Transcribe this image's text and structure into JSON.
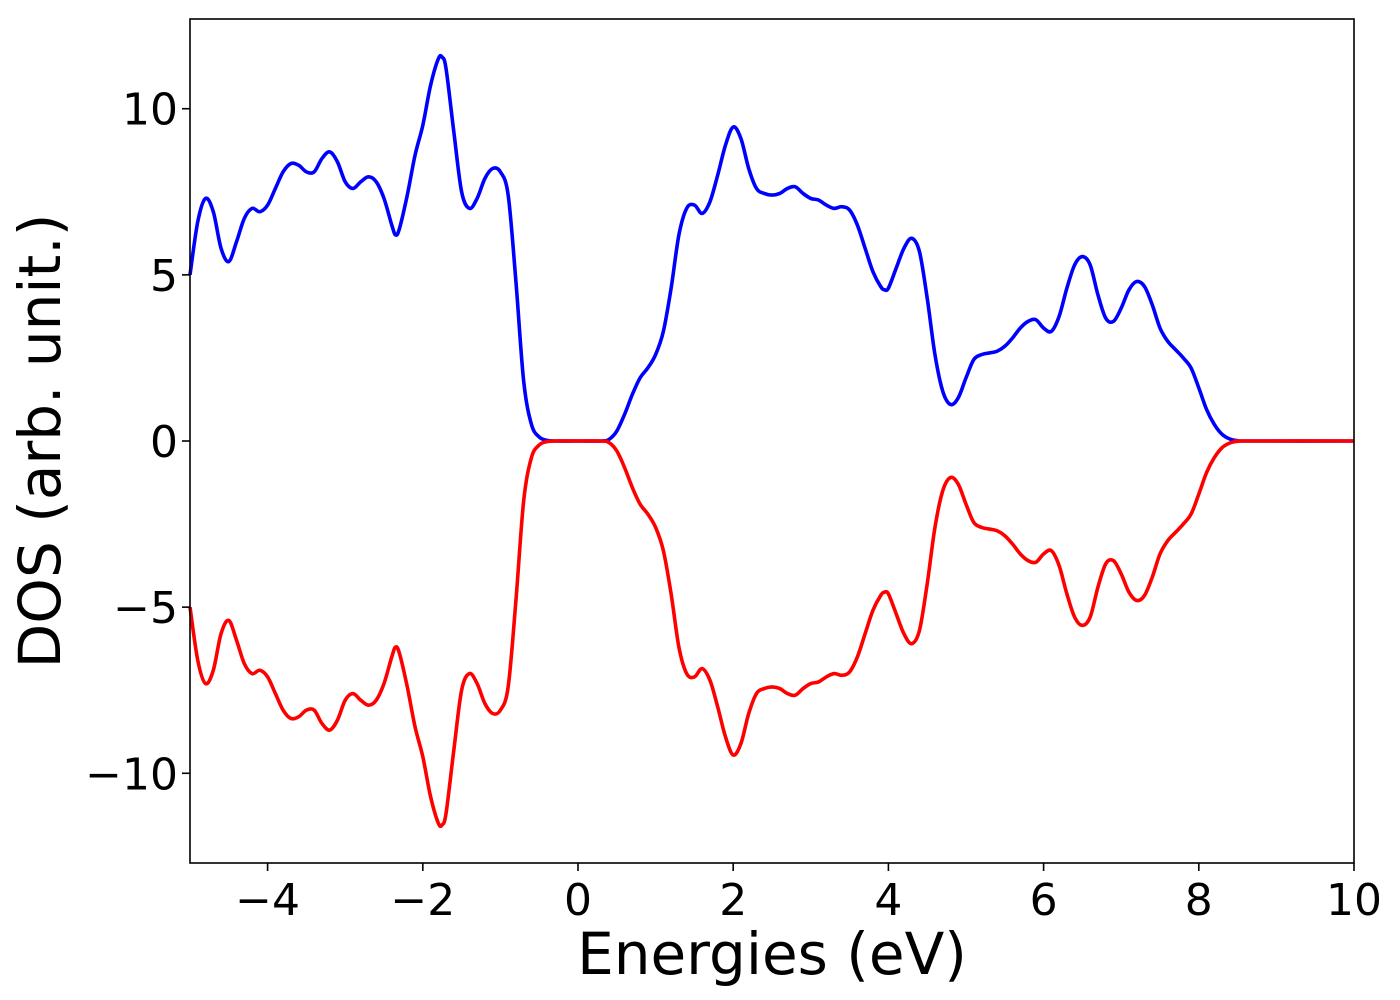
{
  "chart_data": {
    "type": "line",
    "xlabel": "Energies (eV)",
    "ylabel": "DOS (arb. unit.)",
    "xlim": [
      -5,
      10
    ],
    "ylim": [
      -12.7,
      12.7
    ],
    "grid": false,
    "x_ticks": [
      {
        "value": -4,
        "label": "−4"
      },
      {
        "value": -2,
        "label": "−2"
      },
      {
        "value": 0,
        "label": "0"
      },
      {
        "value": 2,
        "label": "2"
      },
      {
        "value": 4,
        "label": "4"
      },
      {
        "value": 6,
        "label": "6"
      },
      {
        "value": 8,
        "label": "8"
      },
      {
        "value": 10,
        "label": "10"
      }
    ],
    "y_ticks": [
      {
        "value": 10,
        "label": "10"
      },
      {
        "value": 5,
        "label": "5"
      },
      {
        "value": 0,
        "label": "0"
      },
      {
        "value": -5,
        "label": "−5"
      },
      {
        "value": -10,
        "label": "−10"
      }
    ],
    "series": [
      {
        "color": "#0000ff",
        "points": [
          [
            -5.0,
            5.0
          ],
          [
            -4.9,
            6.6
          ],
          [
            -4.8,
            7.3
          ],
          [
            -4.7,
            6.9
          ],
          [
            -4.6,
            5.8
          ],
          [
            -4.5,
            5.4
          ],
          [
            -4.4,
            6.0
          ],
          [
            -4.3,
            6.7
          ],
          [
            -4.2,
            7.0
          ],
          [
            -4.1,
            6.9
          ],
          [
            -4.0,
            7.1
          ],
          [
            -3.9,
            7.6
          ],
          [
            -3.8,
            8.1
          ],
          [
            -3.7,
            8.35
          ],
          [
            -3.6,
            8.3
          ],
          [
            -3.5,
            8.1
          ],
          [
            -3.4,
            8.1
          ],
          [
            -3.3,
            8.5
          ],
          [
            -3.2,
            8.7
          ],
          [
            -3.1,
            8.4
          ],
          [
            -3.0,
            7.8
          ],
          [
            -2.9,
            7.6
          ],
          [
            -2.8,
            7.8
          ],
          [
            -2.7,
            7.95
          ],
          [
            -2.6,
            7.8
          ],
          [
            -2.5,
            7.3
          ],
          [
            -2.4,
            6.5
          ],
          [
            -2.35,
            6.2
          ],
          [
            -2.3,
            6.4
          ],
          [
            -2.2,
            7.4
          ],
          [
            -2.1,
            8.6
          ],
          [
            -2.0,
            9.5
          ],
          [
            -1.9,
            10.7
          ],
          [
            -1.8,
            11.5
          ],
          [
            -1.75,
            11.55
          ],
          [
            -1.7,
            11.2
          ],
          [
            -1.6,
            9.3
          ],
          [
            -1.5,
            7.5
          ],
          [
            -1.4,
            7.0
          ],
          [
            -1.3,
            7.3
          ],
          [
            -1.2,
            7.9
          ],
          [
            -1.1,
            8.2
          ],
          [
            -1.0,
            8.1
          ],
          [
            -0.9,
            7.4
          ],
          [
            -0.8,
            4.8
          ],
          [
            -0.7,
            1.8
          ],
          [
            -0.6,
            0.5
          ],
          [
            -0.5,
            0.12
          ],
          [
            -0.4,
            0.02
          ],
          [
            -0.3,
            0.0
          ],
          [
            0.0,
            0.0
          ],
          [
            0.3,
            0.0
          ],
          [
            0.4,
            0.05
          ],
          [
            0.5,
            0.3
          ],
          [
            0.6,
            0.8
          ],
          [
            0.7,
            1.4
          ],
          [
            0.8,
            1.9
          ],
          [
            0.9,
            2.2
          ],
          [
            1.0,
            2.6
          ],
          [
            1.1,
            3.3
          ],
          [
            1.2,
            4.6
          ],
          [
            1.3,
            6.2
          ],
          [
            1.4,
            7.0
          ],
          [
            1.5,
            7.1
          ],
          [
            1.6,
            6.85
          ],
          [
            1.7,
            7.2
          ],
          [
            1.8,
            8.0
          ],
          [
            1.9,
            8.9
          ],
          [
            2.0,
            9.45
          ],
          [
            2.1,
            9.1
          ],
          [
            2.2,
            8.2
          ],
          [
            2.3,
            7.6
          ],
          [
            2.4,
            7.45
          ],
          [
            2.5,
            7.4
          ],
          [
            2.6,
            7.45
          ],
          [
            2.7,
            7.6
          ],
          [
            2.8,
            7.65
          ],
          [
            2.9,
            7.45
          ],
          [
            3.0,
            7.3
          ],
          [
            3.1,
            7.25
          ],
          [
            3.2,
            7.1
          ],
          [
            3.3,
            7.0
          ],
          [
            3.4,
            7.05
          ],
          [
            3.5,
            6.95
          ],
          [
            3.6,
            6.5
          ],
          [
            3.7,
            5.8
          ],
          [
            3.8,
            5.1
          ],
          [
            3.9,
            4.65
          ],
          [
            3.95,
            4.55
          ],
          [
            4.0,
            4.6
          ],
          [
            4.1,
            5.2
          ],
          [
            4.2,
            5.8
          ],
          [
            4.3,
            6.1
          ],
          [
            4.4,
            5.7
          ],
          [
            4.5,
            4.3
          ],
          [
            4.6,
            2.6
          ],
          [
            4.7,
            1.5
          ],
          [
            4.8,
            1.1
          ],
          [
            4.9,
            1.3
          ],
          [
            5.0,
            1.9
          ],
          [
            5.1,
            2.45
          ],
          [
            5.2,
            2.6
          ],
          [
            5.3,
            2.65
          ],
          [
            5.4,
            2.7
          ],
          [
            5.5,
            2.85
          ],
          [
            5.6,
            3.1
          ],
          [
            5.7,
            3.4
          ],
          [
            5.8,
            3.6
          ],
          [
            5.9,
            3.65
          ],
          [
            6.0,
            3.4
          ],
          [
            6.1,
            3.3
          ],
          [
            6.2,
            3.75
          ],
          [
            6.3,
            4.6
          ],
          [
            6.4,
            5.3
          ],
          [
            6.5,
            5.55
          ],
          [
            6.6,
            5.3
          ],
          [
            6.7,
            4.4
          ],
          [
            6.8,
            3.7
          ],
          [
            6.9,
            3.6
          ],
          [
            7.0,
            4.0
          ],
          [
            7.1,
            4.55
          ],
          [
            7.2,
            4.8
          ],
          [
            7.3,
            4.65
          ],
          [
            7.4,
            4.1
          ],
          [
            7.5,
            3.4
          ],
          [
            7.6,
            3.0
          ],
          [
            7.7,
            2.75
          ],
          [
            7.8,
            2.5
          ],
          [
            7.9,
            2.2
          ],
          [
            8.0,
            1.6
          ],
          [
            8.1,
            0.95
          ],
          [
            8.2,
            0.5
          ],
          [
            8.3,
            0.2
          ],
          [
            8.4,
            0.06
          ],
          [
            8.5,
            0.01
          ],
          [
            8.6,
            0.0
          ],
          [
            10.0,
            0.0
          ]
        ]
      },
      {
        "color": "#ff0000",
        "points": [
          [
            -5.0,
            -5.0
          ],
          [
            -4.9,
            -6.6
          ],
          [
            -4.8,
            -7.3
          ],
          [
            -4.7,
            -6.9
          ],
          [
            -4.6,
            -5.8
          ],
          [
            -4.5,
            -5.4
          ],
          [
            -4.4,
            -6.0
          ],
          [
            -4.3,
            -6.7
          ],
          [
            -4.2,
            -7.0
          ],
          [
            -4.1,
            -6.9
          ],
          [
            -4.0,
            -7.1
          ],
          [
            -3.9,
            -7.6
          ],
          [
            -3.8,
            -8.1
          ],
          [
            -3.7,
            -8.35
          ],
          [
            -3.6,
            -8.3
          ],
          [
            -3.5,
            -8.1
          ],
          [
            -3.4,
            -8.1
          ],
          [
            -3.3,
            -8.5
          ],
          [
            -3.2,
            -8.7
          ],
          [
            -3.1,
            -8.4
          ],
          [
            -3.0,
            -7.8
          ],
          [
            -2.9,
            -7.6
          ],
          [
            -2.8,
            -7.8
          ],
          [
            -2.7,
            -7.95
          ],
          [
            -2.6,
            -7.8
          ],
          [
            -2.5,
            -7.3
          ],
          [
            -2.4,
            -6.5
          ],
          [
            -2.35,
            -6.2
          ],
          [
            -2.3,
            -6.4
          ],
          [
            -2.2,
            -7.4
          ],
          [
            -2.1,
            -8.6
          ],
          [
            -2.0,
            -9.5
          ],
          [
            -1.9,
            -10.7
          ],
          [
            -1.8,
            -11.5
          ],
          [
            -1.75,
            -11.55
          ],
          [
            -1.7,
            -11.2
          ],
          [
            -1.6,
            -9.3
          ],
          [
            -1.5,
            -7.5
          ],
          [
            -1.4,
            -7.0
          ],
          [
            -1.3,
            -7.3
          ],
          [
            -1.2,
            -7.9
          ],
          [
            -1.1,
            -8.2
          ],
          [
            -1.0,
            -8.1
          ],
          [
            -0.9,
            -7.4
          ],
          [
            -0.8,
            -4.8
          ],
          [
            -0.7,
            -1.8
          ],
          [
            -0.6,
            -0.5
          ],
          [
            -0.5,
            -0.12
          ],
          [
            -0.4,
            -0.02
          ],
          [
            -0.3,
            0.0
          ],
          [
            0.0,
            0.0
          ],
          [
            0.3,
            0.0
          ],
          [
            0.4,
            -0.05
          ],
          [
            0.5,
            -0.3
          ],
          [
            0.6,
            -0.8
          ],
          [
            0.7,
            -1.4
          ],
          [
            0.8,
            -1.9
          ],
          [
            0.9,
            -2.2
          ],
          [
            1.0,
            -2.6
          ],
          [
            1.1,
            -3.3
          ],
          [
            1.2,
            -4.6
          ],
          [
            1.3,
            -6.2
          ],
          [
            1.4,
            -7.0
          ],
          [
            1.5,
            -7.1
          ],
          [
            1.6,
            -6.85
          ],
          [
            1.7,
            -7.2
          ],
          [
            1.8,
            -8.0
          ],
          [
            1.9,
            -8.9
          ],
          [
            2.0,
            -9.45
          ],
          [
            2.1,
            -9.1
          ],
          [
            2.2,
            -8.2
          ],
          [
            2.3,
            -7.6
          ],
          [
            2.4,
            -7.45
          ],
          [
            2.5,
            -7.4
          ],
          [
            2.6,
            -7.45
          ],
          [
            2.7,
            -7.6
          ],
          [
            2.8,
            -7.65
          ],
          [
            2.9,
            -7.45
          ],
          [
            3.0,
            -7.3
          ],
          [
            3.1,
            -7.25
          ],
          [
            3.2,
            -7.1
          ],
          [
            3.3,
            -7.0
          ],
          [
            3.4,
            -7.05
          ],
          [
            3.5,
            -6.95
          ],
          [
            3.6,
            -6.5
          ],
          [
            3.7,
            -5.8
          ],
          [
            3.8,
            -5.1
          ],
          [
            3.9,
            -4.65
          ],
          [
            3.95,
            -4.55
          ],
          [
            4.0,
            -4.6
          ],
          [
            4.1,
            -5.2
          ],
          [
            4.2,
            -5.8
          ],
          [
            4.3,
            -6.1
          ],
          [
            4.4,
            -5.7
          ],
          [
            4.5,
            -4.3
          ],
          [
            4.6,
            -2.6
          ],
          [
            4.7,
            -1.5
          ],
          [
            4.8,
            -1.1
          ],
          [
            4.9,
            -1.3
          ],
          [
            5.0,
            -1.9
          ],
          [
            5.1,
            -2.45
          ],
          [
            5.2,
            -2.6
          ],
          [
            5.3,
            -2.65
          ],
          [
            5.4,
            -2.7
          ],
          [
            5.5,
            -2.85
          ],
          [
            5.6,
            -3.1
          ],
          [
            5.7,
            -3.4
          ],
          [
            5.8,
            -3.6
          ],
          [
            5.9,
            -3.65
          ],
          [
            6.0,
            -3.4
          ],
          [
            6.1,
            -3.3
          ],
          [
            6.2,
            -3.75
          ],
          [
            6.3,
            -4.6
          ],
          [
            6.4,
            -5.3
          ],
          [
            6.5,
            -5.55
          ],
          [
            6.6,
            -5.3
          ],
          [
            6.7,
            -4.4
          ],
          [
            6.8,
            -3.7
          ],
          [
            6.9,
            -3.6
          ],
          [
            7.0,
            -4.0
          ],
          [
            7.1,
            -4.55
          ],
          [
            7.2,
            -4.8
          ],
          [
            7.3,
            -4.65
          ],
          [
            7.4,
            -4.1
          ],
          [
            7.5,
            -3.4
          ],
          [
            7.6,
            -3.0
          ],
          [
            7.7,
            -2.75
          ],
          [
            7.8,
            -2.5
          ],
          [
            7.9,
            -2.2
          ],
          [
            8.0,
            -1.6
          ],
          [
            8.1,
            -0.95
          ],
          [
            8.2,
            -0.5
          ],
          [
            8.3,
            -0.2
          ],
          [
            8.4,
            -0.06
          ],
          [
            8.5,
            -0.01
          ],
          [
            8.6,
            0.0
          ],
          [
            10.0,
            0.0
          ]
        ]
      }
    ]
  }
}
